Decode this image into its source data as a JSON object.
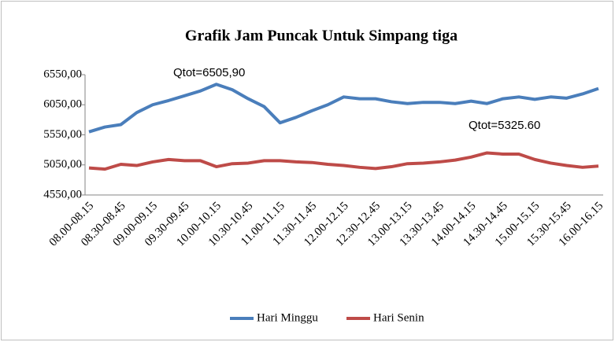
{
  "chart_data": {
    "type": "line",
    "title": "Grafik Jam Puncak Untuk Simpang tiga",
    "categories": [
      "08.00-08.15",
      null,
      "08.30-08.45",
      null,
      "09.00-09.15",
      null,
      "09.30-09.45",
      null,
      "10.00-10.15",
      null,
      "10.30-10.45",
      null,
      "11.00-11.15",
      null,
      "11.30-11.45",
      null,
      "12.00-12.15",
      null,
      "12.30-12.45",
      null,
      "13.00-13.15",
      null,
      "13.30-13.45",
      null,
      "14.00-14.15",
      null,
      "14.30-14.45",
      null,
      "15.00-15.15",
      null,
      "15.30-15.45",
      null,
      "16.00-16.15"
    ],
    "series": [
      {
        "name": "Hari Minggu",
        "color": "#4a7ebb",
        "values": [
          5600,
          5680,
          5720,
          5920,
          6050,
          6120,
          6200,
          6280,
          6390,
          6300,
          6150,
          6020,
          5750,
          5840,
          5950,
          6050,
          6180,
          6150,
          6150,
          6100,
          6070,
          6090,
          6090,
          6070,
          6110,
          6070,
          6150,
          6180,
          6140,
          6180,
          6160,
          6230,
          6320
        ]
      },
      {
        "name": "Hari Senin",
        "color": "#be4b48",
        "values": [
          5000,
          4980,
          5060,
          5040,
          5100,
          5140,
          5120,
          5120,
          5020,
          5070,
          5080,
          5120,
          5120,
          5100,
          5090,
          5060,
          5040,
          5010,
          4990,
          5020,
          5070,
          5080,
          5100,
          5130,
          5180,
          5250,
          5230,
          5230,
          5140,
          5080,
          5040,
          5010,
          5030
        ]
      }
    ],
    "annotations": [
      "Qtot=6505,90",
      "Qtot=5325.60"
    ],
    "ylim": [
      4550,
      6550
    ],
    "yticks": [
      {
        "value": 4550,
        "label": "4550,00"
      },
      {
        "value": 5050,
        "label": "5050,00"
      },
      {
        "value": 5550,
        "label": "5550,00"
      },
      {
        "value": 6050,
        "label": "6050,00"
      },
      {
        "value": 6550,
        "label": "6550,00"
      }
    ],
    "grid": false,
    "legend": "bottom"
  }
}
